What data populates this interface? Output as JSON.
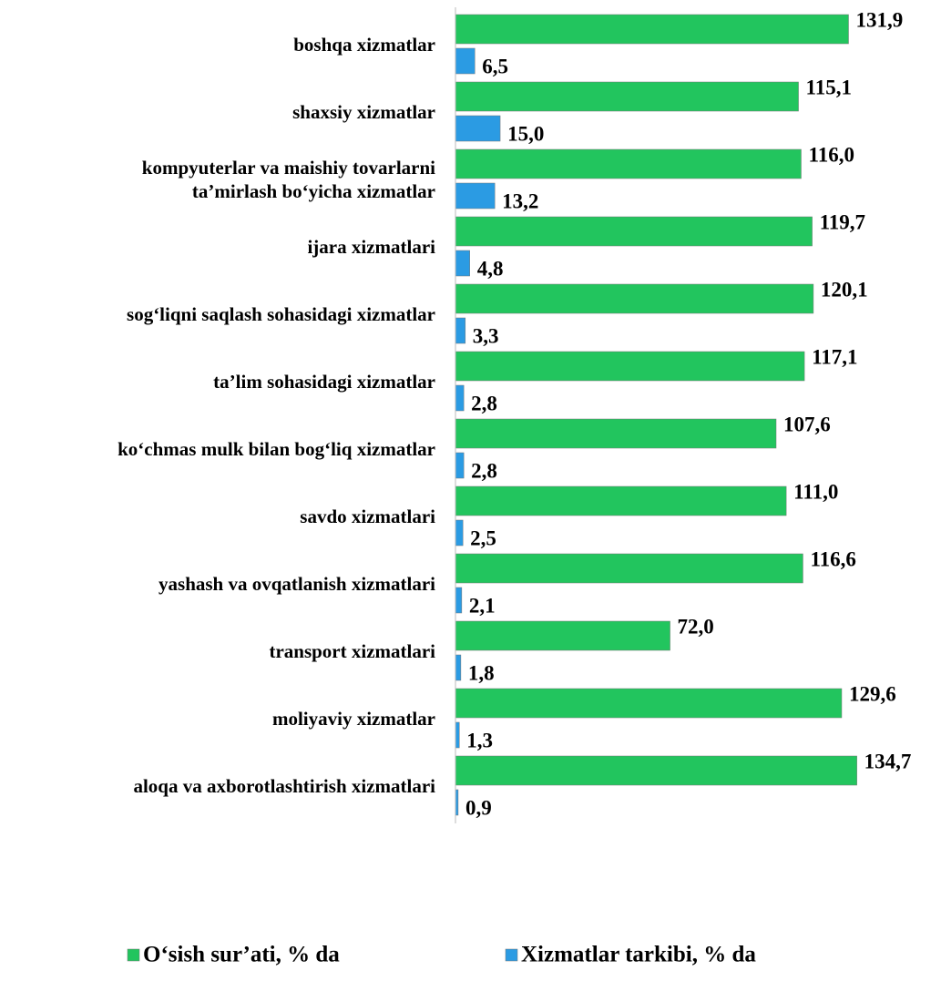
{
  "chart_data": {
    "type": "barh",
    "categories": [
      "boshqa xizmatlar",
      "shaxsiy xizmatlar",
      "kompyuterlar va maishiy tovarlarni\nta’mirlash bo‘yicha xizmatlar",
      "ijara xizmatlari",
      "sog‘liqni saqlash sohasidagi xizmatlar",
      "ta’lim sohasidagi xizmatlar",
      "ko‘chmas mulk bilan bog‘liq xizmatlar",
      "savdo xizmatlari",
      "yashash va ovqatlanish xizmatlari",
      "transport xizmatlari",
      "moliyaviy xizmatlar",
      "aloqa va axborotlashtirish xizmatlari"
    ],
    "series": [
      {
        "name": "O‘sish sur’ati, % da",
        "color": "#22c55e",
        "values": [
          131.9,
          115.1,
          116.0,
          119.7,
          120.1,
          117.1,
          107.6,
          111.0,
          116.6,
          72.0,
          129.6,
          134.7
        ],
        "value_labels": [
          "131,9",
          "115,1",
          "116,0",
          "119,7",
          "120,1",
          "117,1",
          "107,6",
          "111,0",
          "116,6",
          "72,0",
          "129,6",
          "134,7"
        ]
      },
      {
        "name": "Xizmatlar tarkibi, % da",
        "color": "#2b9be3",
        "values": [
          6.5,
          15.0,
          13.2,
          4.8,
          3.3,
          2.8,
          2.8,
          2.5,
          2.1,
          1.8,
          1.3,
          0.9
        ],
        "value_labels": [
          "6,5",
          "15,0",
          "13,2",
          "4,8",
          "3,3",
          "2,8",
          "2,8",
          "2,5",
          "2,1",
          "1,8",
          "1,3",
          "0,9"
        ]
      }
    ],
    "xlim": [
      0,
      140
    ],
    "legend": "bottom"
  }
}
